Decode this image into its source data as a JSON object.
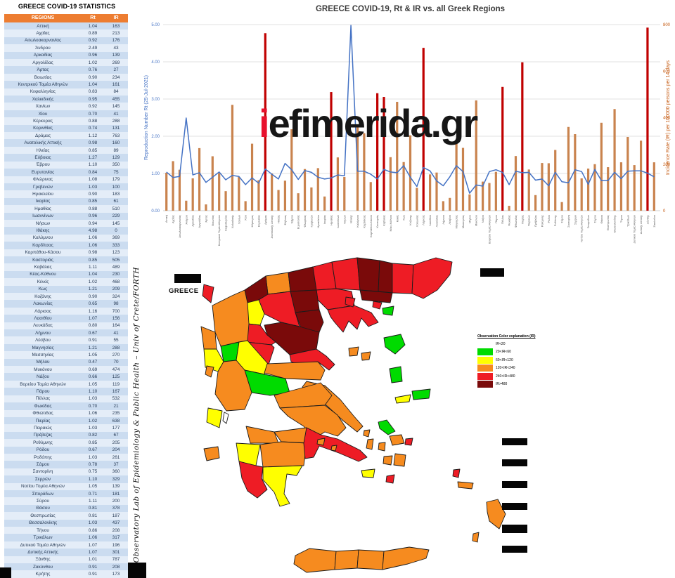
{
  "panel": {
    "title": "GREECE COVID-19 STATISTICS",
    "columns": [
      "REGIONS",
      "Rt",
      "IR"
    ],
    "rows": [
      [
        "Αττική",
        "1.04",
        "163"
      ],
      [
        "Αχαΐας",
        "0.89",
        "213"
      ],
      [
        "Αιτωλοακαρνανίας",
        "0.92",
        "176"
      ],
      [
        "Άνδρου",
        "2.49",
        "43"
      ],
      [
        "Αρκαδίας",
        "0.96",
        "139"
      ],
      [
        "Αργολίδας",
        "1.02",
        "269"
      ],
      [
        "Άρτας",
        "0.76",
        "27"
      ],
      [
        "Βοιωτίας",
        "0.90",
        "234"
      ],
      [
        "Κεντρικού Τομέα Αθηνών",
        "1.04",
        "161"
      ],
      [
        "Κεφαλληνίας",
        "0.83",
        "84"
      ],
      [
        "Χαλκιδικής",
        "0.95",
        "455"
      ],
      [
        "Χανίων",
        "0.92",
        "145"
      ],
      [
        "Χίου",
        "0.70",
        "41"
      ],
      [
        "Κέρκυρας",
        "0.88",
        "288"
      ],
      [
        "Κορινθίας",
        "0.74",
        "131"
      ],
      [
        "Δράμας",
        "1.12",
        "763"
      ],
      [
        "Ανατολικής Αττικής",
        "0.98",
        "160"
      ],
      [
        "Ηλείας",
        "0.85",
        "89"
      ],
      [
        "Εύβοιας",
        "1.27",
        "129"
      ],
      [
        "Έβρου",
        "1.10",
        "350"
      ],
      [
        "Ευρυτανίας",
        "0.84",
        "75"
      ],
      [
        "Φλώρινας",
        "1.08",
        "179"
      ],
      [
        "Γρεβενών",
        "1.03",
        "100"
      ],
      [
        "Ηρακλείου",
        "0.90",
        "183"
      ],
      [
        "Ικαρίας",
        "0.85",
        "61"
      ],
      [
        "Ημαθίας",
        "0.88",
        "510"
      ],
      [
        "Ιωαννίνων",
        "0.96",
        "229"
      ],
      [
        "Νήσων",
        "0.94",
        "145"
      ],
      [
        "Ιθάκης",
        "4.98",
        "0"
      ],
      [
        "Καλύμνου",
        "1.06",
        "369"
      ],
      [
        "Καρδίτσας",
        "1.06",
        "333"
      ],
      [
        "Καρπάθου-Κάσου",
        "0.98",
        "123"
      ],
      [
        "Καστοριάς",
        "0.85",
        "505"
      ],
      [
        "Καβάλας",
        "1.11",
        "489"
      ],
      [
        "Κέας-Κύθνου",
        "1.04",
        "230"
      ],
      [
        "Κιλκίς",
        "1.02",
        "468"
      ],
      [
        "Κως",
        "1.21",
        "209"
      ],
      [
        "Κοζάνης",
        "0.90",
        "324"
      ],
      [
        "Λακωνίας",
        "0.65",
        "98"
      ],
      [
        "Λάρισας",
        "1.16",
        "700"
      ],
      [
        "Λασιθίου",
        "1.07",
        "156"
      ],
      [
        "Λευκάδας",
        "0.80",
        "164"
      ],
      [
        "Λήμνου",
        "0.67",
        "41"
      ],
      [
        "Λέσβου",
        "0.91",
        "55"
      ],
      [
        "Μαγνησίας",
        "1.21",
        "288"
      ],
      [
        "Μεσσηνίας",
        "1.05",
        "270"
      ],
      [
        "Μήλου",
        "0.47",
        "70"
      ],
      [
        "Μυκόνου",
        "0.69",
        "474"
      ],
      [
        "Νάξου",
        "0.66",
        "125"
      ],
      [
        "Βορείου Τομέα Αθηνών",
        "1.05",
        "119"
      ],
      [
        "Πάρου",
        "1.10",
        "167"
      ],
      [
        "Πέλλας",
        "1.03",
        "532"
      ],
      [
        "Φωκίδας",
        "0.70",
        "21"
      ],
      [
        "Φθιώτιδας",
        "1.06",
        "235"
      ],
      [
        "Πιερίας",
        "1.02",
        "638"
      ],
      [
        "Πειραιώς",
        "1.03",
        "177"
      ],
      [
        "Πρέβεζας",
        "0.82",
        "67"
      ],
      [
        "Ρεθύμνης",
        "0.85",
        "205"
      ],
      [
        "Ρόδου",
        "0.67",
        "204"
      ],
      [
        "Ροδόπης",
        "1.03",
        "261"
      ],
      [
        "Σάμου",
        "0.78",
        "37"
      ],
      [
        "Σαντορίνη",
        "0.75",
        "360"
      ],
      [
        "Σερρών",
        "1.10",
        "329"
      ],
      [
        "Νοτίου Τομέα Αθηνών",
        "1.05",
        "139"
      ],
      [
        "Σποράδων",
        "0.71",
        "181"
      ],
      [
        "Σύρου",
        "1.11",
        "200"
      ],
      [
        "Θάσου",
        "0.81",
        "378"
      ],
      [
        "Θεσπρωτίας",
        "0.81",
        "187"
      ],
      [
        "Θεσσαλονίκης",
        "1.03",
        "437"
      ],
      [
        "Τήνου",
        "0.86",
        "208"
      ],
      [
        "Τρικάλων",
        "1.06",
        "317"
      ],
      [
        "Δυτικού Τομέα Αθηνών",
        "1.07",
        "196"
      ],
      [
        "Δυτικής Αττικής",
        "1.07",
        "301"
      ],
      [
        "Ξάνθης",
        "1.01",
        "787"
      ],
      [
        "Ζακύνθου",
        "0.91",
        "208"
      ],
      [
        "Κρήτης",
        "0.91",
        "173"
      ]
    ]
  },
  "attribution": "Observatory Lab of Epidemiology & Public Health – Univ of Crete/FORTH",
  "watermark": {
    "prefix": "i",
    "rest": "efimerida.gr",
    "prefix_color": "#e8112d"
  },
  "map_label": "GREECE",
  "chart_data": {
    "type": "bar+line",
    "title": "GREECE COVID-19, Rt & IR vs. all Greek Regions",
    "categories": [
      "Αττική",
      "Αχαΐας",
      "Αιτωλοακαρνανίας",
      "Άνδρου",
      "Αρκαδίας",
      "Αργολίδας",
      "Άρτας",
      "Βοιωτίας",
      "Κεντρικού Τομέα Αθηνών",
      "Κεφαλληνίας",
      "Χαλκιδικής",
      "Χανίων",
      "Χίου",
      "Κέρκυρας",
      "Κορινθίας",
      "Δράμας",
      "Ανατολικής Αττικής",
      "Ηλείας",
      "Εύβοιας",
      "Έβρου",
      "Ευρυτανίας",
      "Φλώρινας",
      "Γρεβενών",
      "Ηρακλείου",
      "Ικαρίας",
      "Ημαθίας",
      "Ιωαννίνων",
      "Νήσων",
      "Ιθάκης",
      "Καλύμνου",
      "Καρδίτσας",
      "Καρπάθου-Κάσου",
      "Καστοριάς",
      "Καβάλας",
      "Κέας-Κύθνου",
      "Κιλκίς",
      "Κως",
      "Κοζάνης",
      "Λακωνίας",
      "Λάρισας",
      "Λασιθίου",
      "Λευκάδας",
      "Λήμνου",
      "Λέσβου",
      "Μαγνησίας",
      "Μεσσηνίας",
      "Μήλου",
      "Μυκόνου",
      "Νάξου",
      "Βορείου Τομέα Αθηνών",
      "Πάρου",
      "Πέλλας",
      "Φωκίδας",
      "Φθιώτιδας",
      "Πιερίας",
      "Πειραιώς",
      "Πρέβεζας",
      "Ρεθύμνης",
      "Ρόδου",
      "Ροδόπης",
      "Σάμου",
      "Σαντορίνη",
      "Σερρών",
      "Νοτίου Τομέα Αθηνών",
      "Σποράδων",
      "Σύρου",
      "Θάσου",
      "Θεσπρωτίας",
      "Θεσσαλονίκης",
      "Τήνου",
      "Τρικάλων",
      "Δυτικού Τομέα Αθηνών",
      "Δυτικής Αττικής",
      "Ξάνθης",
      "Ζακύνθου"
    ],
    "series": [
      {
        "name": "Rt",
        "type": "line",
        "axis": "left",
        "color": "#4472C4",
        "values": [
          1.04,
          0.89,
          0.92,
          2.49,
          0.96,
          1.02,
          0.76,
          0.9,
          1.04,
          0.83,
          0.95,
          0.92,
          0.7,
          0.88,
          0.74,
          1.12,
          0.98,
          0.85,
          1.27,
          1.1,
          0.84,
          1.08,
          1.03,
          0.9,
          0.85,
          0.88,
          0.96,
          0.94,
          4.98,
          1.06,
          1.06,
          0.98,
          0.85,
          1.11,
          1.04,
          1.02,
          1.21,
          0.9,
          0.65,
          1.16,
          1.07,
          0.8,
          0.67,
          0.91,
          1.21,
          1.05,
          0.47,
          0.69,
          0.66,
          1.05,
          1.1,
          1.03,
          0.7,
          1.06,
          1.02,
          1.03,
          0.82,
          0.85,
          0.67,
          1.03,
          0.78,
          0.75,
          1.1,
          1.05,
          0.71,
          1.11,
          0.81,
          0.81,
          1.03,
          0.86,
          1.06,
          1.07,
          1.07,
          1.01,
          0.91
        ]
      },
      {
        "name": "IR",
        "type": "bar",
        "axis": "right",
        "color": "#C9834E",
        "high_color": "#C00000",
        "high_threshold": 480,
        "values": [
          163,
          213,
          176,
          43,
          139,
          269,
          27,
          234,
          161,
          84,
          455,
          145,
          41,
          288,
          131,
          763,
          160,
          89,
          129,
          350,
          75,
          179,
          100,
          183,
          61,
          510,
          229,
          145,
          0,
          369,
          333,
          123,
          505,
          489,
          230,
          468,
          209,
          324,
          98,
          700,
          156,
          164,
          41,
          55,
          288,
          270,
          70,
          474,
          125,
          119,
          167,
          532,
          21,
          235,
          638,
          177,
          67,
          205,
          204,
          261,
          37,
          360,
          329,
          139,
          181,
          200,
          378,
          187,
          437,
          208,
          317,
          196,
          301,
          787,
          208
        ]
      }
    ],
    "left_axis": {
      "label": "Reproduction Number Rt (25-Jul-2021)",
      "ticks": [
        "0.00",
        "1.00",
        "2.00",
        "3.00",
        "4.00",
        "5.00"
      ],
      "range": [
        0,
        5
      ],
      "color": "#4472C4"
    },
    "right_axis": {
      "label": "Incidence Rate (IR) per 100000 persons per 14 days",
      "ticks": [
        "0",
        "200",
        "400",
        "600",
        "800"
      ],
      "range": [
        0,
        800
      ],
      "color": "#C55A11"
    },
    "grid": true,
    "gridline_color": "#D9D9D9",
    "title_color": "#3b3b3b",
    "xlabel_color": "#595959"
  },
  "legend": {
    "header": "Observation Color explanation (IR)",
    "items": [
      {
        "label": "IR<20",
        "color": "#FFFFFF",
        "max": 20
      },
      {
        "label": "20<IR<60",
        "color": "#00DB00",
        "max": 60
      },
      {
        "label": "60<IR<120",
        "color": "#FFFF00",
        "max": 120
      },
      {
        "label": "120<IR<240",
        "color": "#F68B1F",
        "max": 240
      },
      {
        "label": "240<IR<480",
        "color": "#EE1C25",
        "max": 480
      },
      {
        "label": "IR>480",
        "color": "#7A0A0A",
        "max": 99999
      }
    ]
  }
}
